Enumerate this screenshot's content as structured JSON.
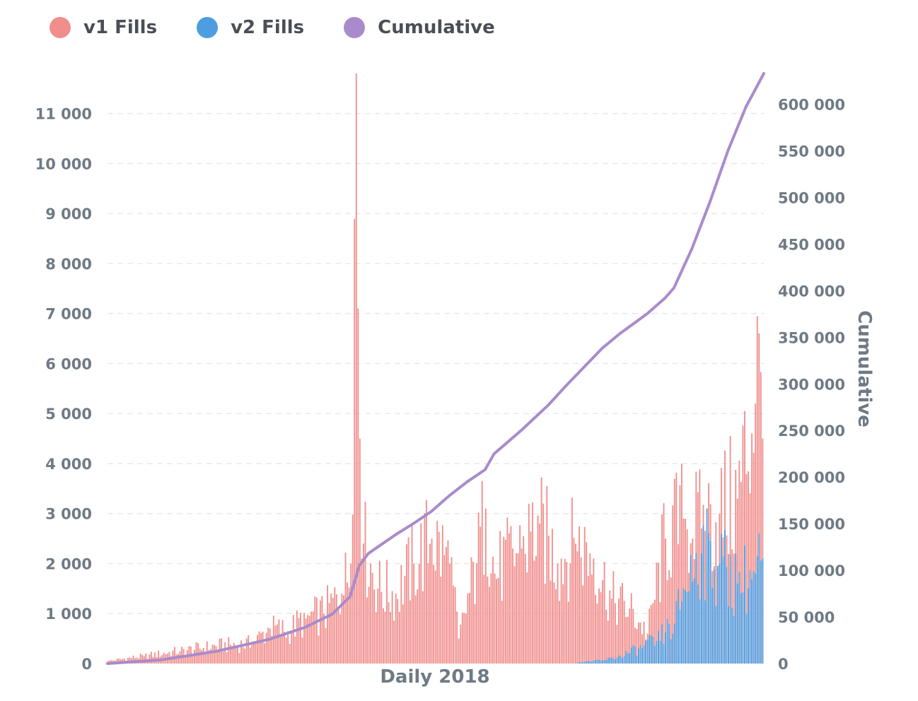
{
  "colors": {
    "v1": "#f08e8c",
    "v2": "#4e9de0",
    "cumulative": "#a98bcb",
    "grid": "#e9e9e9",
    "tick": "#6e7a85"
  },
  "legend": [
    {
      "label": "v1 Fills",
      "color": "#f08e8c"
    },
    {
      "label": "v2 Fills",
      "color": "#4e9de0"
    },
    {
      "label": "Cumulative",
      "color": "#a98bcb"
    }
  ],
  "chart_data": {
    "type": "bar",
    "xlabel": "Daily 2018",
    "ylabel_right": "Cumulative",
    "ylim_left": [
      0,
      11800
    ],
    "ylim_right": [
      0,
      633000
    ],
    "yticks_left": [
      0,
      1000,
      2000,
      3000,
      4000,
      5000,
      6000,
      7000,
      8000,
      9000,
      10000,
      11000
    ],
    "yticks_left_labels": [
      "0",
      "1 000",
      "2 000",
      "3 000",
      "4 000",
      "5 000",
      "6 000",
      "7 000",
      "8 000",
      "9 000",
      "10 000",
      "11 000"
    ],
    "yticks_right": [
      0,
      50000,
      100000,
      150000,
      200000,
      250000,
      300000,
      350000,
      400000,
      450000,
      500000,
      550000,
      600000
    ],
    "yticks_right_labels": [
      "0",
      "50 000",
      "100 000",
      "150 000",
      "200 000",
      "250 000",
      "300 000",
      "350 000",
      "400 000",
      "450 000",
      "500 000",
      "550 000",
      "600 000"
    ],
    "grid": true,
    "legend_position": "top-left",
    "num_days": 365,
    "series": [
      {
        "name": "v1 Fills",
        "type": "bar",
        "axis": "left",
        "anchors": [
          [
            0,
            50
          ],
          [
            20,
            150
          ],
          [
            40,
            250
          ],
          [
            60,
            350
          ],
          [
            80,
            400
          ],
          [
            90,
            700
          ],
          [
            100,
            650
          ],
          [
            110,
            900
          ],
          [
            120,
            1000
          ],
          [
            130,
            1400
          ],
          [
            135,
            2000
          ],
          [
            138,
            11800
          ],
          [
            140,
            4500
          ],
          [
            142,
            2400
          ],
          [
            150,
            1500
          ],
          [
            160,
            1400
          ],
          [
            170,
            2000
          ],
          [
            180,
            2500
          ],
          [
            190,
            2000
          ],
          [
            195,
            500
          ],
          [
            205,
            2000
          ],
          [
            210,
            3100
          ],
          [
            215,
            1800
          ],
          [
            230,
            2300
          ],
          [
            240,
            2800
          ],
          [
            250,
            2000
          ],
          [
            260,
            2400
          ],
          [
            270,
            2100
          ],
          [
            280,
            1300
          ],
          [
            290,
            1100
          ],
          [
            300,
            600
          ],
          [
            310,
            2500
          ],
          [
            320,
            2900
          ],
          [
            330,
            2700
          ],
          [
            340,
            3000
          ],
          [
            350,
            3300
          ],
          [
            360,
            5200
          ],
          [
            362,
            6600
          ],
          [
            364,
            4500
          ]
        ]
      },
      {
        "name": "v2 Fills",
        "type": "bar",
        "axis": "left",
        "anchors": [
          [
            0,
            0
          ],
          [
            260,
            0
          ],
          [
            262,
            30
          ],
          [
            275,
            60
          ],
          [
            285,
            150
          ],
          [
            295,
            300
          ],
          [
            305,
            450
          ],
          [
            315,
            800
          ],
          [
            320,
            1500
          ],
          [
            330,
            2200
          ],
          [
            340,
            2000
          ],
          [
            350,
            1600
          ],
          [
            360,
            1800
          ],
          [
            364,
            2100
          ]
        ]
      },
      {
        "name": "Cumulative",
        "type": "line",
        "axis": "right",
        "points": [
          [
            0,
            0
          ],
          [
            30,
            4000
          ],
          [
            60,
            13000
          ],
          [
            90,
            26000
          ],
          [
            110,
            39000
          ],
          [
            125,
            53000
          ],
          [
            135,
            72000
          ],
          [
            140,
            105000
          ],
          [
            145,
            118000
          ],
          [
            160,
            138000
          ],
          [
            170,
            150000
          ],
          [
            180,
            163000
          ],
          [
            190,
            180000
          ],
          [
            200,
            195000
          ],
          [
            210,
            208000
          ],
          [
            215,
            225000
          ],
          [
            230,
            250000
          ],
          [
            245,
            277000
          ],
          [
            255,
            298000
          ],
          [
            265,
            318000
          ],
          [
            275,
            338000
          ],
          [
            285,
            354000
          ],
          [
            300,
            375000
          ],
          [
            310,
            392000
          ],
          [
            315,
            403000
          ],
          [
            325,
            445000
          ],
          [
            335,
            495000
          ],
          [
            345,
            550000
          ],
          [
            355,
            597000
          ],
          [
            365,
            633000
          ]
        ]
      }
    ]
  }
}
